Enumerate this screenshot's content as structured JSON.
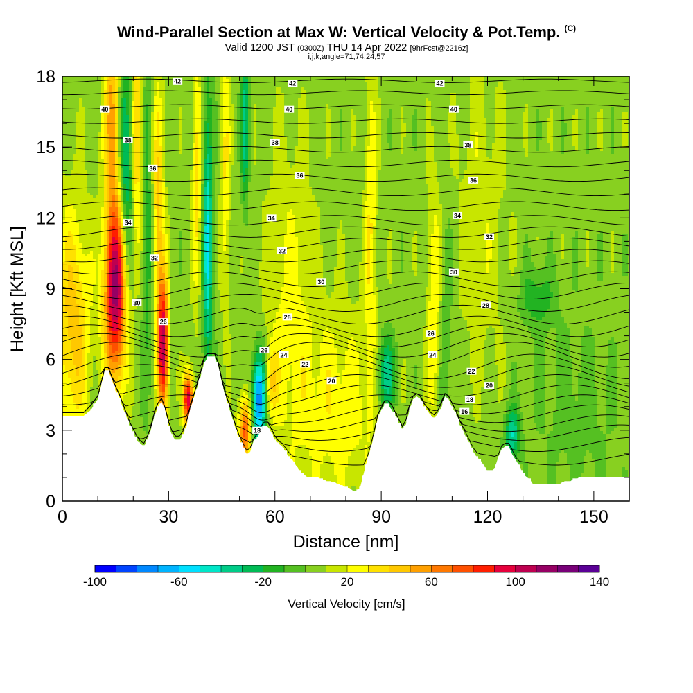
{
  "title": {
    "main": "Wind-Parallel Section at Max W: Vertical Velocity & Pot.Temp.",
    "copyright": "(C)",
    "valid_prefix": "Valid 1200 JST",
    "valid_utc": "(0300Z)",
    "valid_date": "THU 14 Apr 2022",
    "forecast": "[9hrFcst@2216z]",
    "indices": "i,j,k,angle=71,74,24,57"
  },
  "chart_data": {
    "type": "heatmap",
    "xlabel": "Distance [nm]",
    "ylabel": "Height [Kft MSL]",
    "xlim": [
      0,
      160
    ],
    "ylim": [
      0,
      18
    ],
    "x_ticks": [
      0,
      30,
      60,
      90,
      120,
      150
    ],
    "y_ticks": [
      0,
      3,
      6,
      9,
      12,
      15,
      18
    ],
    "colorbar": {
      "title": "Vertical Velocity [cm/s]",
      "range": [
        -100,
        140
      ],
      "step": 10,
      "tick_values": [
        -100,
        -60,
        -20,
        20,
        60,
        100,
        140
      ],
      "colors": [
        "#0000ff",
        "#0044ff",
        "#0088ff",
        "#00b4ff",
        "#00e0ff",
        "#00e6c8",
        "#00cc88",
        "#00bb55",
        "#22b322",
        "#55c022",
        "#88d020",
        "#c8e600",
        "#ffff00",
        "#ffe100",
        "#ffc800",
        "#ffa000",
        "#ff7800",
        "#ff5000",
        "#ff1e00",
        "#e6003c",
        "#be0050",
        "#960064",
        "#780078",
        "#5a0096"
      ]
    },
    "terrain": [
      [
        0,
        3.6
      ],
      [
        3,
        3.6
      ],
      [
        6,
        3.6
      ],
      [
        8,
        3.9
      ],
      [
        10,
        4.3
      ],
      [
        11,
        4.9
      ],
      [
        12,
        5.5
      ],
      [
        13,
        5.5
      ],
      [
        14,
        5.1
      ],
      [
        15,
        4.7
      ],
      [
        16,
        4.4
      ],
      [
        17,
        4.0
      ],
      [
        18,
        3.6
      ],
      [
        19,
        3.2
      ],
      [
        20,
        2.9
      ],
      [
        21,
        2.6
      ],
      [
        22,
        2.4
      ],
      [
        23,
        2.3
      ],
      [
        24,
        2.6
      ],
      [
        25,
        3.0
      ],
      [
        26,
        3.6
      ],
      [
        27,
        4.0
      ],
      [
        28,
        4.2
      ],
      [
        29,
        3.8
      ],
      [
        30,
        3.2
      ],
      [
        31,
        2.8
      ],
      [
        32,
        2.6
      ],
      [
        33,
        2.6
      ],
      [
        34,
        2.8
      ],
      [
        35,
        3.2
      ],
      [
        36,
        3.8
      ],
      [
        37,
        4.3
      ],
      [
        38,
        4.8
      ],
      [
        39,
        5.3
      ],
      [
        40,
        5.9
      ],
      [
        41,
        6.1
      ],
      [
        42,
        6.1
      ],
      [
        43,
        6.1
      ],
      [
        44,
        5.7
      ],
      [
        45,
        5.0
      ],
      [
        46,
        4.4
      ],
      [
        47,
        4.0
      ],
      [
        48,
        3.5
      ],
      [
        49,
        3.0
      ],
      [
        50,
        2.6
      ],
      [
        51,
        2.3
      ],
      [
        52,
        2.0
      ],
      [
        53,
        2.1
      ],
      [
        54,
        2.5
      ],
      [
        55,
        2.7
      ],
      [
        56,
        3.0
      ],
      [
        57,
        3.2
      ],
      [
        58,
        3.2
      ],
      [
        59,
        2.9
      ],
      [
        60,
        2.6
      ],
      [
        61,
        2.4
      ],
      [
        62,
        2.3
      ],
      [
        63,
        2.1
      ],
      [
        64,
        1.9
      ],
      [
        65,
        1.7
      ],
      [
        66,
        1.5
      ],
      [
        67,
        1.3
      ],
      [
        68,
        1.1
      ],
      [
        69,
        1.0
      ],
      [
        70,
        1.0
      ],
      [
        72,
        1.0
      ],
      [
        74,
        0.9
      ],
      [
        76,
        0.8
      ],
      [
        78,
        0.7
      ],
      [
        80,
        0.6
      ],
      [
        81,
        0.5
      ],
      [
        82,
        0.4
      ],
      [
        83,
        0.4
      ],
      [
        84,
        0.6
      ],
      [
        85,
        1.2
      ],
      [
        86,
        1.7
      ],
      [
        87,
        2.2
      ],
      [
        88,
        2.8
      ],
      [
        89,
        3.5
      ],
      [
        90,
        3.8
      ],
      [
        91,
        4.1
      ],
      [
        92,
        4.1
      ],
      [
        93,
        3.9
      ],
      [
        94,
        3.6
      ],
      [
        95,
        3.3
      ],
      [
        96,
        3.0
      ],
      [
        97,
        3.3
      ],
      [
        98,
        3.9
      ],
      [
        99,
        4.3
      ],
      [
        100,
        4.4
      ],
      [
        101,
        4.3
      ],
      [
        102,
        4.0
      ],
      [
        103,
        3.8
      ],
      [
        104,
        3.6
      ],
      [
        105,
        3.5
      ],
      [
        106,
        3.7
      ],
      [
        107,
        4.0
      ],
      [
        108,
        4.4
      ],
      [
        109,
        4.3
      ],
      [
        110,
        4.0
      ],
      [
        111,
        3.7
      ],
      [
        112,
        3.3
      ],
      [
        113,
        3.0
      ],
      [
        114,
        2.7
      ],
      [
        115,
        2.4
      ],
      [
        116,
        2.1
      ],
      [
        117,
        1.9
      ],
      [
        118,
        1.7
      ],
      [
        119,
        1.5
      ],
      [
        120,
        1.3
      ],
      [
        121,
        1.3
      ],
      [
        122,
        1.4
      ],
      [
        123,
        1.8
      ],
      [
        124,
        2.2
      ],
      [
        125,
        2.3
      ],
      [
        126,
        2.3
      ],
      [
        127,
        2.0
      ],
      [
        128,
        1.7
      ],
      [
        129,
        1.5
      ],
      [
        130,
        1.2
      ],
      [
        131,
        1.0
      ],
      [
        132,
        0.9
      ],
      [
        133,
        0.7
      ],
      [
        134,
        0.7
      ],
      [
        136,
        0.7
      ],
      [
        138,
        0.7
      ],
      [
        140,
        0.7
      ],
      [
        142,
        0.8
      ],
      [
        144,
        0.9
      ],
      [
        146,
        1.0
      ],
      [
        148,
        1.0
      ],
      [
        150,
        1.0
      ],
      [
        152,
        1.0
      ],
      [
        154,
        1.0
      ],
      [
        156,
        1.0
      ],
      [
        158,
        1.0
      ],
      [
        160,
        1.0
      ]
    ],
    "vv_features": [
      {
        "x": 15,
        "z": 9.0,
        "sx": 2.2,
        "sz": 2.8,
        "value": 110
      },
      {
        "x": 14,
        "z": 16.5,
        "sx": 1.5,
        "sz": 2.5,
        "value": 50
      },
      {
        "x": 21,
        "z": 15.5,
        "sx": 1.2,
        "sz": 3.5,
        "value": 40
      },
      {
        "x": 18,
        "z": 14.0,
        "sx": 1.5,
        "sz": 3.5,
        "value": -45
      },
      {
        "x": 28.5,
        "z": 6.5,
        "sx": 1.0,
        "sz": 2.0,
        "value": 100
      },
      {
        "x": 27,
        "z": 12.0,
        "sx": 1.2,
        "sz": 4.0,
        "value": 40
      },
      {
        "x": 24,
        "z": 12.0,
        "sx": 1.2,
        "sz": 5.0,
        "value": -25
      },
      {
        "x": 35.5,
        "z": 4.3,
        "sx": 1.0,
        "sz": 0.8,
        "value": 95
      },
      {
        "x": 3,
        "z": 7.5,
        "sx": 3.5,
        "sz": 3.5,
        "value": 40
      },
      {
        "x": 41,
        "z": 11.0,
        "sx": 1.0,
        "sz": 4.5,
        "value": -55
      },
      {
        "x": 38,
        "z": 14.0,
        "sx": 1.0,
        "sz": 4.0,
        "value": 30
      },
      {
        "x": 51.5,
        "z": 16.0,
        "sx": 0.8,
        "sz": 2.5,
        "value": -40
      },
      {
        "x": 46,
        "z": 14.0,
        "sx": 1.0,
        "sz": 4.0,
        "value": 25
      },
      {
        "x": 55.5,
        "z": 4.3,
        "sx": 1.4,
        "sz": 1.4,
        "value": -85
      },
      {
        "x": 51.5,
        "z": 3.0,
        "sx": 1.2,
        "sz": 1.0,
        "value": 70
      },
      {
        "x": 59,
        "z": 5.0,
        "sx": 1.2,
        "sz": 1.0,
        "value": 30
      },
      {
        "x": 78,
        "z": 4.0,
        "sx": 8.0,
        "sz": 3.0,
        "value": 22
      },
      {
        "x": 64,
        "z": 8.0,
        "sx": 5.0,
        "sz": 5.0,
        "value": 18
      },
      {
        "x": 91.5,
        "z": 5.3,
        "sx": 1.8,
        "sz": 1.2,
        "value": -45
      },
      {
        "x": 87,
        "z": 12.0,
        "sx": 1.2,
        "sz": 5.0,
        "value": 25
      },
      {
        "x": 105,
        "z": 8.0,
        "sx": 1.5,
        "sz": 4.0,
        "value": 25
      },
      {
        "x": 108,
        "z": 7.0,
        "sx": 1.5,
        "sz": 4.0,
        "value": -15
      },
      {
        "x": 127,
        "z": 2.8,
        "sx": 1.5,
        "sz": 0.8,
        "value": -45
      },
      {
        "x": 134,
        "z": 8.6,
        "sx": 3.5,
        "sz": 0.9,
        "value": -22
      },
      {
        "x": 145,
        "z": 4.0,
        "sx": 8.0,
        "sz": 2.5,
        "value": -10
      },
      {
        "x": 118,
        "z": 12.0,
        "sx": 5.0,
        "sz": 5.0,
        "value": 12
      }
    ],
    "theta_contours": [
      {
        "z": 1.8,
        "label": ""
      },
      {
        "z": 2.4,
        "label": "18"
      },
      {
        "z": 2.9,
        "label": ""
      },
      {
        "z": 3.3,
        "label": "16"
      },
      {
        "z": 3.7,
        "label": ""
      },
      {
        "z": 4.1,
        "label": "18"
      },
      {
        "z": 4.5,
        "label": ""
      },
      {
        "z": 4.9,
        "label": "20"
      },
      {
        "z": 5.3,
        "label": ""
      },
      {
        "z": 5.7,
        "label": "22"
      },
      {
        "z": 6.2,
        "label": "24"
      },
      {
        "z": 6.6,
        "label": ""
      },
      {
        "z": 7.0,
        "label": "26"
      },
      {
        "z": 7.4,
        "label": ""
      },
      {
        "z": 7.9,
        "label": "28"
      },
      {
        "z": 8.4,
        "label": ""
      },
      {
        "z": 8.9,
        "label": ""
      },
      {
        "z": 9.4,
        "label": "30"
      },
      {
        "z": 9.9,
        "label": ""
      },
      {
        "z": 10.4,
        "label": ""
      },
      {
        "z": 10.9,
        "label": "32"
      },
      {
        "z": 11.4,
        "label": ""
      },
      {
        "z": 11.9,
        "label": "34"
      },
      {
        "z": 12.5,
        "label": ""
      },
      {
        "z": 13.1,
        "label": ""
      },
      {
        "z": 13.7,
        "label": "36"
      },
      {
        "z": 14.3,
        "label": ""
      },
      {
        "z": 14.9,
        "label": "38"
      },
      {
        "z": 15.5,
        "label": ""
      },
      {
        "z": 16.1,
        "label": ""
      },
      {
        "z": 16.7,
        "label": "40"
      },
      {
        "z": 17.3,
        "label": ""
      },
      {
        "z": 17.8,
        "label": "42"
      }
    ],
    "contour_labels": [
      {
        "x": 32.5,
        "z": 17.8,
        "text": "42"
      },
      {
        "x": 65,
        "z": 17.7,
        "text": "42"
      },
      {
        "x": 106.5,
        "z": 17.7,
        "text": "42"
      },
      {
        "x": 12,
        "z": 16.6,
        "text": "40"
      },
      {
        "x": 64,
        "z": 16.6,
        "text": "40"
      },
      {
        "x": 110.5,
        "z": 16.6,
        "text": "40"
      },
      {
        "x": 18.5,
        "z": 15.3,
        "text": "38"
      },
      {
        "x": 60,
        "z": 15.2,
        "text": "38"
      },
      {
        "x": 114.5,
        "z": 15.1,
        "text": "38"
      },
      {
        "x": 25.5,
        "z": 14.1,
        "text": "36"
      },
      {
        "x": 67,
        "z": 13.8,
        "text": "36"
      },
      {
        "x": 116,
        "z": 13.6,
        "text": "36"
      },
      {
        "x": 18.5,
        "z": 11.8,
        "text": "34"
      },
      {
        "x": 59,
        "z": 12.0,
        "text": "34"
      },
      {
        "x": 111.5,
        "z": 12.1,
        "text": "34"
      },
      {
        "x": 26,
        "z": 10.3,
        "text": "32"
      },
      {
        "x": 62,
        "z": 10.6,
        "text": "32"
      },
      {
        "x": 120.5,
        "z": 11.2,
        "text": "32"
      },
      {
        "x": 21,
        "z": 8.4,
        "text": "30"
      },
      {
        "x": 73,
        "z": 9.3,
        "text": "30"
      },
      {
        "x": 110.5,
        "z": 9.7,
        "text": "30"
      },
      {
        "x": 28.5,
        "z": 7.6,
        "text": "26"
      },
      {
        "x": 63.5,
        "z": 7.8,
        "text": "28"
      },
      {
        "x": 119.5,
        "z": 8.3,
        "text": "28"
      },
      {
        "x": 57,
        "z": 6.4,
        "text": "26"
      },
      {
        "x": 62.5,
        "z": 6.2,
        "text": "24"
      },
      {
        "x": 104.5,
        "z": 6.2,
        "text": "24"
      },
      {
        "x": 104,
        "z": 7.1,
        "text": "26"
      },
      {
        "x": 68.5,
        "z": 5.8,
        "text": "22"
      },
      {
        "x": 76,
        "z": 5.1,
        "text": "20"
      },
      {
        "x": 120.5,
        "z": 4.9,
        "text": "20"
      },
      {
        "x": 115.5,
        "z": 5.5,
        "text": "22"
      },
      {
        "x": 115,
        "z": 4.3,
        "text": "18"
      },
      {
        "x": 113.5,
        "z": 3.8,
        "text": "16"
      },
      {
        "x": 55,
        "z": 3.0,
        "text": "18"
      }
    ],
    "grid": false,
    "legend": "bottom"
  }
}
